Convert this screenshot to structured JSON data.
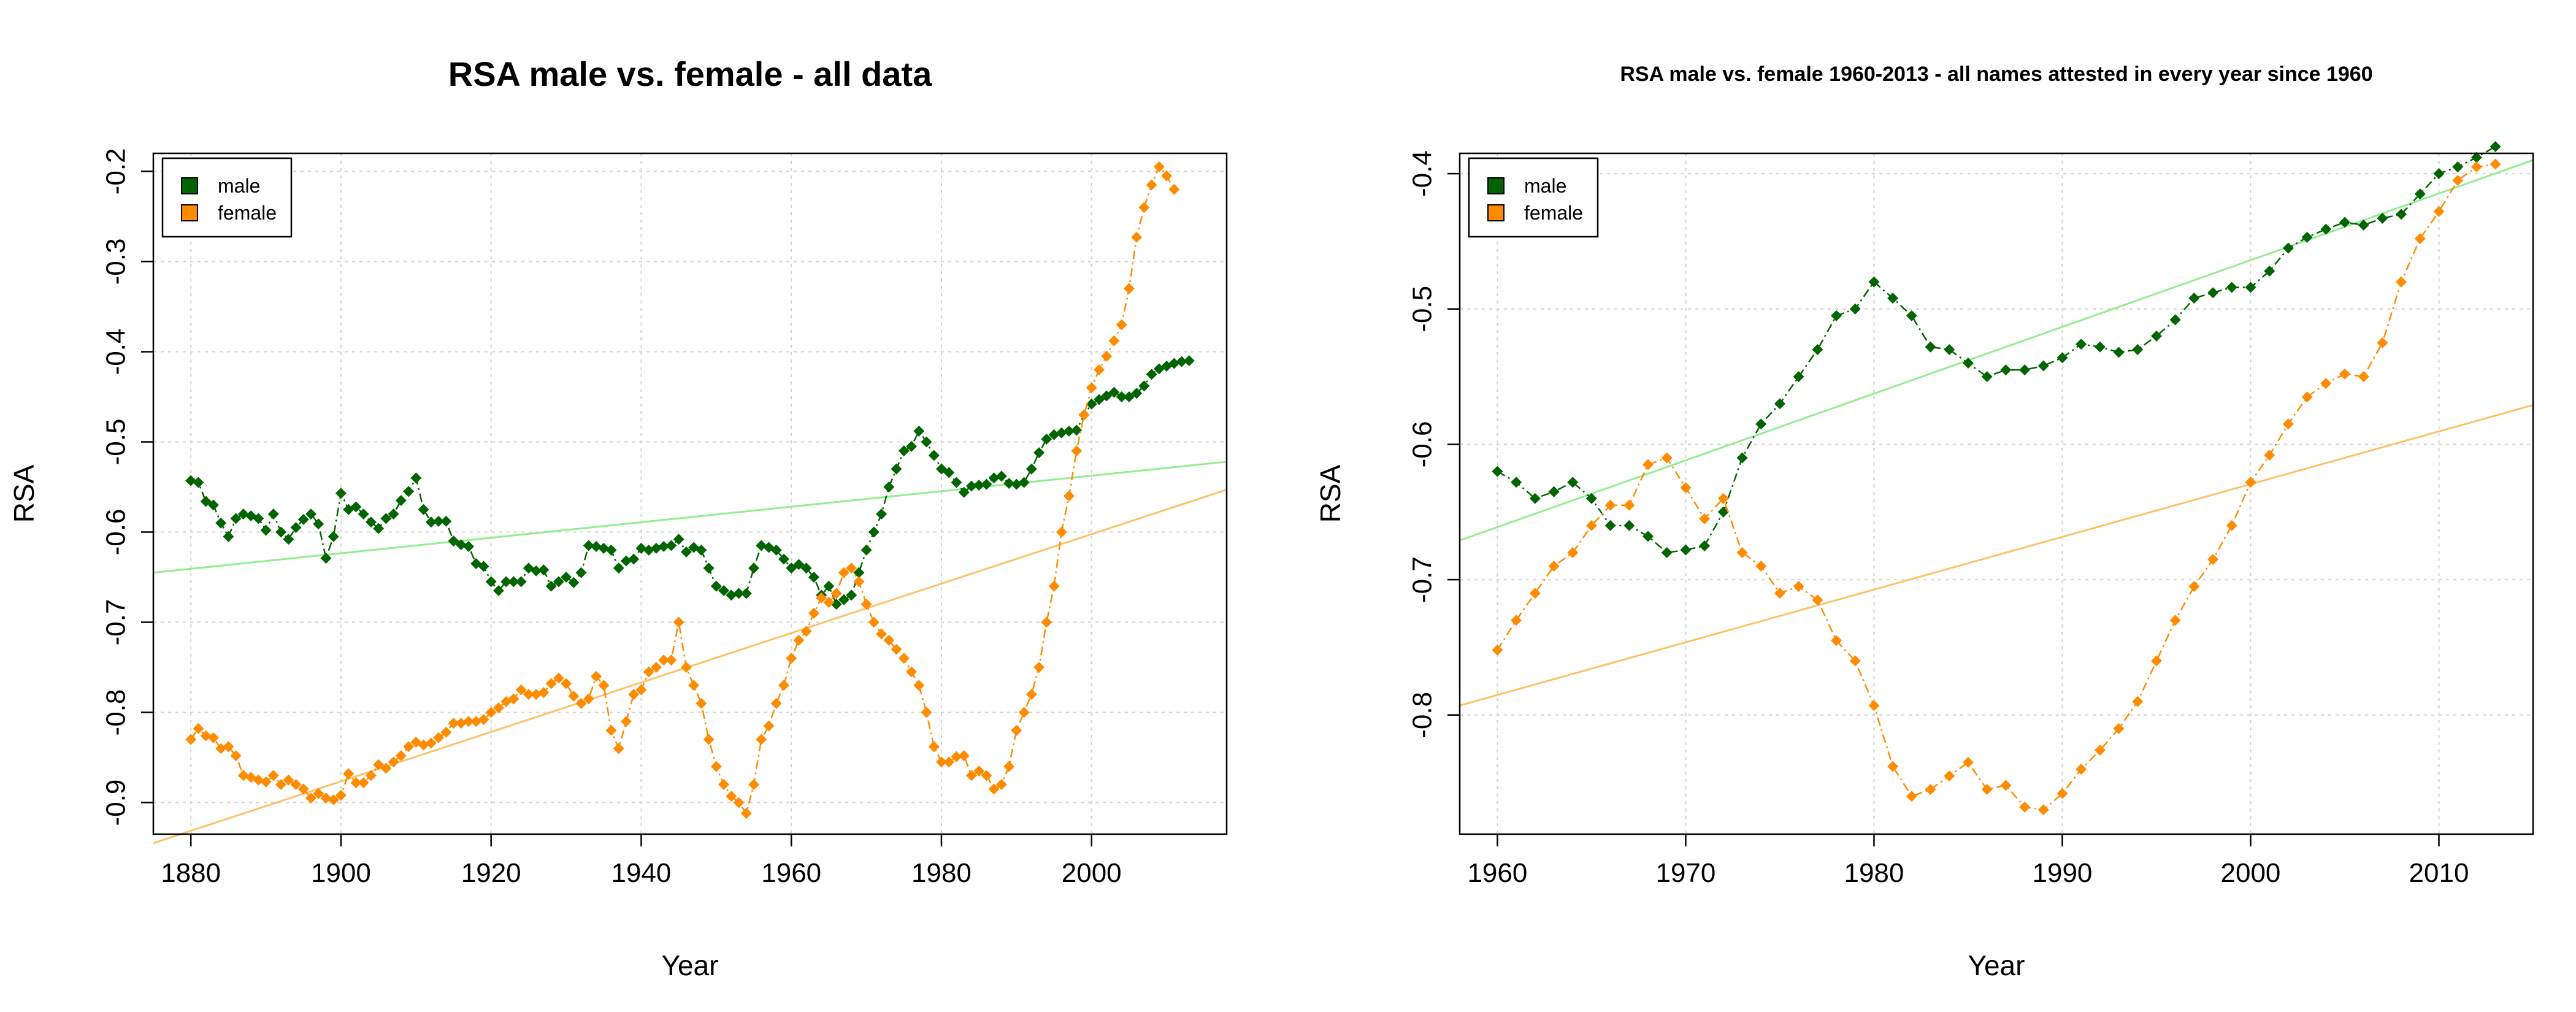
{
  "colors": {
    "male": "#006400",
    "female": "#FF8C00",
    "male_fit": "#90EE90",
    "female_fit": "#FFC168",
    "grid": "#d3d3d3"
  },
  "legend_labels": {
    "male": "male",
    "female": "female"
  },
  "chart_data": [
    {
      "type": "scatter",
      "title": "RSA male vs. female - all data",
      "xlabel": "Year",
      "ylabel": "RSA",
      "xlim": [
        1875,
        2018
      ],
      "ylim": [
        -0.935,
        -0.18
      ],
      "xticks": [
        1880,
        1900,
        1920,
        1940,
        1960,
        1980,
        2000
      ],
      "yticks": [
        -0.9,
        -0.8,
        -0.7,
        -0.6,
        -0.5,
        -0.4,
        -0.3,
        -0.2
      ],
      "ytick_labels": [
        "-0.9",
        "-0.8",
        "-0.7",
        "-0.6",
        "-0.5",
        "-0.4",
        "-0.3",
        "-0.2"
      ],
      "grid": true,
      "legend_position": "top-left",
      "start_year": 1880,
      "series": [
        {
          "name": "male",
          "values": [
            -0.543,
            -0.545,
            -0.566,
            -0.57,
            -0.59,
            -0.605,
            -0.585,
            -0.58,
            -0.582,
            -0.585,
            -0.598,
            -0.58,
            -0.6,
            -0.608,
            -0.595,
            -0.586,
            -0.58,
            -0.591,
            -0.629,
            -0.605,
            -0.557,
            -0.575,
            -0.572,
            -0.58,
            -0.589,
            -0.596,
            -0.585,
            -0.58,
            -0.565,
            -0.555,
            -0.54,
            -0.575,
            -0.589,
            -0.588,
            -0.588,
            -0.61,
            -0.614,
            -0.616,
            -0.635,
            -0.638,
            -0.655,
            -0.665,
            -0.655,
            -0.655,
            -0.655,
            -0.64,
            -0.643,
            -0.642,
            -0.66,
            -0.655,
            -0.65,
            -0.656,
            -0.645,
            -0.615,
            -0.616,
            -0.618,
            -0.62,
            -0.64,
            -0.632,
            -0.63,
            -0.618,
            -0.62,
            -0.618,
            -0.616,
            -0.615,
            -0.608,
            -0.622,
            -0.617,
            -0.62,
            -0.64,
            -0.66,
            -0.665,
            -0.67,
            -0.668,
            -0.668,
            -0.64,
            -0.615,
            -0.617,
            -0.62,
            -0.63,
            -0.64,
            -0.636,
            -0.64,
            -0.65,
            -0.67,
            -0.66,
            -0.68,
            -0.675,
            -0.67,
            -0.645,
            -0.62,
            -0.6,
            -0.58,
            -0.55,
            -0.53,
            -0.51,
            -0.505,
            -0.488,
            -0.5,
            -0.515,
            -0.53,
            -0.534,
            -0.545,
            -0.556,
            -0.549,
            -0.548,
            -0.547,
            -0.54,
            -0.538,
            -0.546,
            -0.547,
            -0.545,
            -0.53,
            -0.512,
            -0.497,
            -0.492,
            -0.49,
            -0.488,
            -0.487,
            -0.47,
            -0.458,
            -0.453,
            -0.449,
            -0.445,
            -0.45,
            -0.45,
            -0.446,
            -0.438,
            -0.425,
            -0.419,
            -0.416,
            -0.413,
            -0.411,
            -0.41
          ]
        },
        {
          "name": "female",
          "values": [
            -0.83,
            -0.818,
            -0.826,
            -0.828,
            -0.84,
            -0.838,
            -0.848,
            -0.87,
            -0.872,
            -0.875,
            -0.877,
            -0.87,
            -0.88,
            -0.875,
            -0.88,
            -0.885,
            -0.895,
            -0.89,
            -0.895,
            -0.897,
            -0.892,
            -0.868,
            -0.878,
            -0.878,
            -0.87,
            -0.858,
            -0.862,
            -0.855,
            -0.848,
            -0.838,
            -0.833,
            -0.836,
            -0.834,
            -0.828,
            -0.822,
            -0.812,
            -0.812,
            -0.81,
            -0.81,
            -0.808,
            -0.8,
            -0.795,
            -0.788,
            -0.785,
            -0.775,
            -0.78,
            -0.78,
            -0.778,
            -0.768,
            -0.762,
            -0.768,
            -0.782,
            -0.79,
            -0.785,
            -0.76,
            -0.77,
            -0.82,
            -0.84,
            -0.81,
            -0.78,
            -0.775,
            -0.755,
            -0.75,
            -0.742,
            -0.742,
            -0.7,
            -0.75,
            -0.77,
            -0.79,
            -0.83,
            -0.86,
            -0.88,
            -0.893,
            -0.9,
            -0.912,
            -0.88,
            -0.83,
            -0.815,
            -0.79,
            -0.77,
            -0.74,
            -0.72,
            -0.71,
            -0.69,
            -0.673,
            -0.678,
            -0.668,
            -0.645,
            -0.64,
            -0.655,
            -0.68,
            -0.7,
            -0.713,
            -0.72,
            -0.73,
            -0.74,
            -0.755,
            -0.77,
            -0.8,
            -0.838,
            -0.855,
            -0.855,
            -0.849,
            -0.848,
            -0.87,
            -0.865,
            -0.87,
            -0.885,
            -0.88,
            -0.86,
            -0.82,
            -0.8,
            -0.78,
            -0.75,
            -0.7,
            -0.66,
            -0.6,
            -0.56,
            -0.51,
            -0.47,
            -0.44,
            -0.42,
            -0.405,
            -0.388,
            -0.37,
            -0.33,
            -0.273,
            -0.24,
            -0.215,
            -0.195,
            -0.205,
            -0.22
          ]
        }
      ],
      "trend_lines": [
        {
          "name": "male",
          "x": [
            1875,
            2018
          ],
          "y": [
            -0.645,
            -0.522
          ]
        },
        {
          "name": "female",
          "x": [
            1875,
            2018
          ],
          "y": [
            -0.945,
            -0.553
          ]
        }
      ]
    },
    {
      "type": "scatter",
      "title": "RSA male vs. female 1960-2013 - all names attested in every year since 1960",
      "xlabel": "Year",
      "ylabel": "RSA",
      "xlim": [
        1958,
        2015
      ],
      "ylim": [
        -0.888,
        -0.385
      ],
      "xticks": [
        1960,
        1970,
        1980,
        1990,
        2000,
        2010
      ],
      "yticks": [
        -0.8,
        -0.7,
        -0.6,
        -0.5,
        -0.4
      ],
      "ytick_labels": [
        "-0.8",
        "-0.7",
        "-0.6",
        "-0.5",
        "-0.4"
      ],
      "grid": true,
      "legend_position": "top-left",
      "start_year": 1960,
      "series": [
        {
          "name": "male",
          "values": [
            -0.62,
            -0.628,
            -0.64,
            -0.635,
            -0.628,
            -0.64,
            -0.66,
            -0.66,
            -0.668,
            -0.68,
            -0.678,
            -0.675,
            -0.65,
            -0.61,
            -0.585,
            -0.57,
            -0.55,
            -0.53,
            -0.505,
            -0.5,
            -0.48,
            -0.492,
            -0.505,
            -0.528,
            -0.53,
            -0.54,
            -0.55,
            -0.545,
            -0.545,
            -0.542,
            -0.536,
            -0.526,
            -0.528,
            -0.532,
            -0.53,
            -0.52,
            -0.508,
            -0.492,
            -0.488,
            -0.484,
            -0.484,
            -0.472,
            -0.455,
            -0.447,
            -0.441,
            -0.436,
            -0.438,
            -0.433,
            -0.43,
            -0.415,
            -0.4,
            -0.395,
            -0.388,
            -0.38
          ]
        },
        {
          "name": "female",
          "values": [
            -0.752,
            -0.73,
            -0.71,
            -0.69,
            -0.68,
            -0.66,
            -0.645,
            -0.645,
            -0.615,
            -0.61,
            -0.632,
            -0.655,
            -0.64,
            -0.68,
            -0.69,
            -0.71,
            -0.705,
            -0.715,
            -0.745,
            -0.76,
            -0.793,
            -0.838,
            -0.86,
            -0.855,
            -0.845,
            -0.835,
            -0.855,
            -0.852,
            -0.868,
            -0.87,
            -0.858,
            -0.84,
            -0.826,
            -0.81,
            -0.79,
            -0.76,
            -0.73,
            -0.705,
            -0.685,
            -0.66,
            -0.628,
            -0.608,
            -0.585,
            -0.565,
            -0.555,
            -0.548,
            -0.55,
            -0.525,
            -0.48,
            -0.448,
            -0.428,
            -0.405,
            -0.395,
            -0.393
          ]
        }
      ],
      "trend_lines": [
        {
          "name": "male",
          "x": [
            1958,
            2015
          ],
          "y": [
            -0.671,
            -0.39
          ]
        },
        {
          "name": "female",
          "x": [
            1958,
            2015
          ],
          "y": [
            -0.793,
            -0.571
          ]
        }
      ]
    }
  ]
}
